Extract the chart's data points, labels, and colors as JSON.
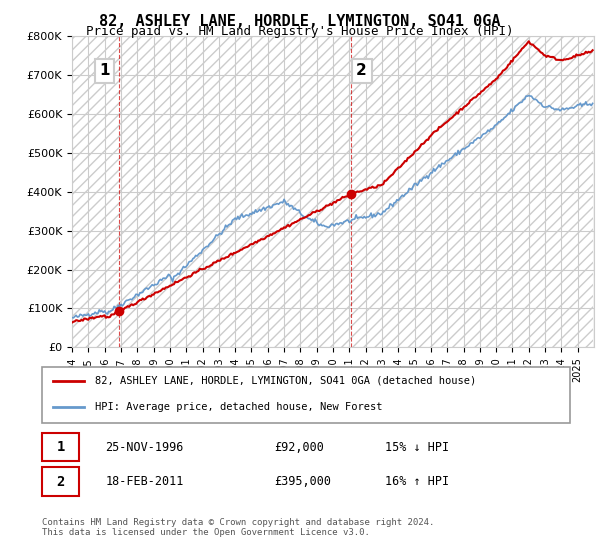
{
  "title": "82, ASHLEY LANE, HORDLE, LYMINGTON, SO41 0GA",
  "subtitle": "Price paid vs. HM Land Registry's House Price Index (HPI)",
  "ylabel_values": [
    "£0",
    "£100K",
    "£200K",
    "£300K",
    "£400K",
    "£500K",
    "£600K",
    "£700K",
    "£800K"
  ],
  "ylim": [
    0,
    800000
  ],
  "sale1_date": "1996-11-25",
  "sale1_price": 92000,
  "sale1_label": "1",
  "sale2_date": "2011-02-18",
  "sale2_price": 395000,
  "sale2_label": "2",
  "legend_line1": "82, ASHLEY LANE, HORDLE, LYMINGTON, SO41 0GA (detached house)",
  "legend_line2": "HPI: Average price, detached house, New Forest",
  "annotation1": "25-NOV-1996          £92,000          15% ↓ HPI",
  "annotation2": "18-FEB-2011          £395,000          16% ↑ HPI",
  "footer": "Contains HM Land Registry data © Crown copyright and database right 2024.\nThis data is licensed under the Open Government Licence v3.0.",
  "red_color": "#cc0000",
  "blue_color": "#6699cc",
  "vline_color": "#cc0000",
  "background_hatch_color": "#e8e8e8",
  "grid_color": "#cccccc"
}
